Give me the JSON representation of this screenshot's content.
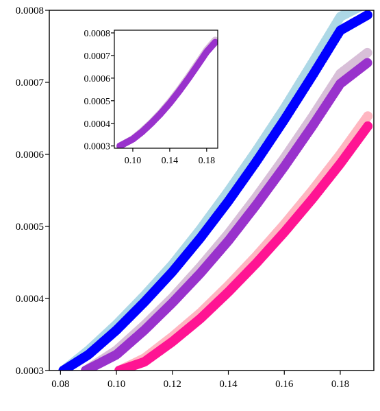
{
  "chart_data": [
    {
      "type": "scatter",
      "title": "",
      "xlabel": "",
      "ylabel": "",
      "xlim": [
        0.076,
        0.192
      ],
      "ylim": [
        0.0003,
        0.0008
      ],
      "xticks": [
        0.08,
        0.1,
        0.12,
        0.14,
        0.16,
        0.18
      ],
      "yticks": [
        0.0003,
        0.0004,
        0.0005,
        0.0006,
        0.0007,
        0.0008
      ],
      "xtick_labels": [
        "0.08",
        "0.10",
        "0.12",
        "0.14",
        "0.16",
        "0.18"
      ],
      "ytick_labels": [
        "0.0003",
        "0.0004",
        "0.0005",
        "0.0006",
        "0.0007",
        "0.0008"
      ],
      "grid": false,
      "series": [
        {
          "color": "#add8e6",
          "x": [
            0.081,
            0.09,
            0.1,
            0.11,
            0.12,
            0.13,
            0.14,
            0.15,
            0.16,
            0.17,
            0.18,
            0.19
          ],
          "y": [
            0.0003,
            0.000328,
            0.000364,
            0.000404,
            0.000447,
            0.000496,
            0.000549,
            0.000605,
            0.000664,
            0.000727,
            0.000791,
            0.000811
          ]
        },
        {
          "color": "#0000ff",
          "x": [
            0.081,
            0.09,
            0.1,
            0.11,
            0.12,
            0.13,
            0.14,
            0.15,
            0.16,
            0.17,
            0.18,
            0.19
          ],
          "y": [
            0.0003,
            0.000322,
            0.000356,
            0.000395,
            0.000437,
            0.000484,
            0.000535,
            0.00059,
            0.000648,
            0.000709,
            0.000772,
            0.000794
          ]
        },
        {
          "color": "#d8bfd8",
          "x": [
            0.089,
            0.1,
            0.11,
            0.12,
            0.13,
            0.14,
            0.15,
            0.16,
            0.17,
            0.18,
            0.19
          ],
          "y": [
            0.0003,
            0.000328,
            0.000363,
            0.000401,
            0.000444,
            0.00049,
            0.000541,
            0.000595,
            0.000652,
            0.000712,
            0.000742
          ]
        },
        {
          "color": "#9932cc",
          "x": [
            0.089,
            0.1,
            0.11,
            0.12,
            0.13,
            0.14,
            0.15,
            0.16,
            0.17,
            0.18,
            0.19
          ],
          "y": [
            0.0003,
            0.000322,
            0.000356,
            0.000394,
            0.000435,
            0.00048,
            0.00053,
            0.000583,
            0.000639,
            0.000698,
            0.000728
          ]
        },
        {
          "color": "#ffb6c1",
          "x": [
            0.101,
            0.11,
            0.12,
            0.13,
            0.14,
            0.15,
            0.16,
            0.17,
            0.18,
            0.19
          ],
          "y": [
            0.0003,
            0.000317,
            0.000347,
            0.00038,
            0.000418,
            0.000459,
            0.000503,
            0.00055,
            0.0006,
            0.000654
          ]
        },
        {
          "color": "#ff1493",
          "x": [
            0.101,
            0.11,
            0.12,
            0.13,
            0.14,
            0.15,
            0.16,
            0.17,
            0.18,
            0.19
          ],
          "y": [
            0.0003,
            0.000312,
            0.00034,
            0.000372,
            0.000409,
            0.000449,
            0.000492,
            0.000538,
            0.000587,
            0.00064
          ]
        }
      ]
    },
    {
      "type": "scatter",
      "title": "",
      "xlabel": "",
      "ylabel": "",
      "xlim": [
        0.08,
        0.192
      ],
      "ylim": [
        0.00029,
        0.000812
      ],
      "xticks": [
        0.1,
        0.14,
        0.18
      ],
      "yticks": [
        0.0003,
        0.0004,
        0.0005,
        0.0006,
        0.0007,
        0.0008
      ],
      "xtick_labels": [
        "0.10",
        "0.14",
        "0.18"
      ],
      "ytick_labels": [
        "0.0003",
        "0.0004",
        "0.0005",
        "0.0006",
        "0.0007",
        "0.0008"
      ],
      "grid": false,
      "series": [
        {
          "color": "#d8bfd8",
          "x": [
            0.086,
            0.1,
            0.11,
            0.12,
            0.13,
            0.14,
            0.15,
            0.16,
            0.17,
            0.18,
            0.19
          ],
          "y": [
            0.0003,
            0.000332,
            0.000366,
            0.000404,
            0.000447,
            0.000495,
            0.000548,
            0.000605,
            0.000665,
            0.000725,
            0.000772
          ]
        },
        {
          "color": "#9932cc",
          "x": [
            0.086,
            0.1,
            0.11,
            0.12,
            0.13,
            0.14,
            0.15,
            0.16,
            0.17,
            0.18,
            0.19
          ],
          "y": [
            0.0003,
            0.00033,
            0.000362,
            0.0004,
            0.000442,
            0.000489,
            0.000541,
            0.000597,
            0.000656,
            0.000716,
            0.000762
          ]
        }
      ]
    }
  ]
}
